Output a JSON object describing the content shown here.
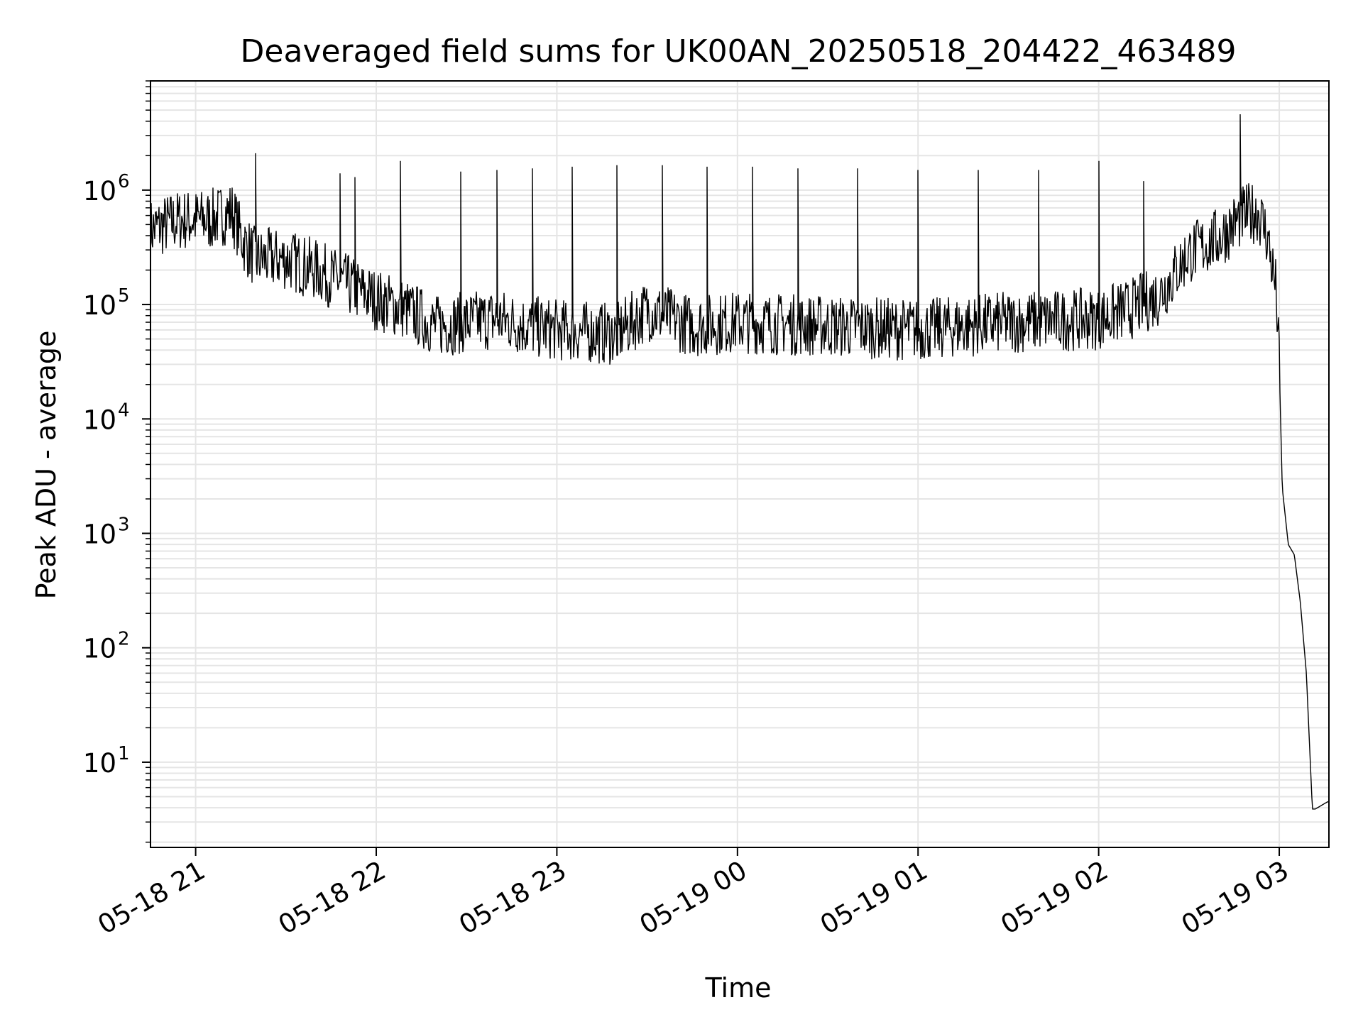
{
  "chart_data": {
    "type": "line",
    "title": "Deaveraged field sums for UK00AN_20250518_204422_463489",
    "xlabel": "Time",
    "ylabel": "Peak ADU - average",
    "x_axis": {
      "type": "time",
      "range": [
        "2025-05-18T20:45:00",
        "2025-05-19T03:16:30"
      ],
      "tick_labels": [
        "05-18 21",
        "05-18 22",
        "05-18 23",
        "05-19 00",
        "05-19 01",
        "05-19 02",
        "05-19 03"
      ],
      "tick_values": [
        "2025-05-18T21:00",
        "2025-05-18T22:00",
        "2025-05-18T23:00",
        "2025-05-19T00:00",
        "2025-05-19T01:00",
        "2025-05-19T02:00",
        "2025-05-19T03:00"
      ]
    },
    "y_axis": {
      "scale": "log",
      "range": [
        1.8,
        9000000
      ],
      "tick_values": [
        10,
        100,
        1000,
        10000,
        100000,
        1000000
      ],
      "tick_labels": [
        {
          "base": "10",
          "exp": "1"
        },
        {
          "base": "10",
          "exp": "2"
        },
        {
          "base": "10",
          "exp": "3"
        },
        {
          "base": "10",
          "exp": "4"
        },
        {
          "base": "10",
          "exp": "5"
        },
        {
          "base": "10",
          "exp": "6"
        }
      ]
    },
    "grid": true,
    "line_color": "#000000",
    "grid_color": "#e5e5e5",
    "series": [
      {
        "x": [
          "2025-05-18T20:45",
          "2025-05-18T20:55",
          "2025-05-18T21:05",
          "2025-05-18T21:12",
          "2025-05-18T21:16",
          "2025-05-18T21:20",
          "2025-05-18T21:30",
          "2025-05-18T21:40",
          "2025-05-18T21:50",
          "2025-05-18T22:00",
          "2025-05-18T22:10",
          "2025-05-18T22:20",
          "2025-05-18T22:30",
          "2025-05-18T22:40",
          "2025-05-18T22:50",
          "2025-05-18T23:00",
          "2025-05-18T23:20",
          "2025-05-18T23:30",
          "2025-05-18T23:45",
          "2025-05-19T00:00",
          "2025-05-19T00:30",
          "2025-05-19T01:00",
          "2025-05-19T01:30",
          "2025-05-19T02:00",
          "2025-05-19T02:10",
          "2025-05-19T02:20",
          "2025-05-19T02:30",
          "2025-05-19T02:40",
          "2025-05-19T02:48",
          "2025-05-19T02:53",
          "2025-05-19T02:56",
          "2025-05-19T02:59",
          "2025-05-19T03:00",
          "2025-05-19T03:01",
          "2025-05-19T03:03",
          "2025-05-19T03:05",
          "2025-05-19T03:07",
          "2025-05-19T03:09",
          "2025-05-19T03:11",
          "2025-05-19T03:12",
          "2025-05-19T03:16"
        ],
        "y": [
          450000,
          550000,
          550000,
          650000,
          350000,
          250000,
          250000,
          200000,
          150000,
          110000,
          90000,
          65000,
          70000,
          75000,
          65000,
          60000,
          55000,
          90000,
          65000,
          70000,
          65000,
          60000,
          70000,
          75000,
          90000,
          120000,
          280000,
          380000,
          600000,
          650000,
          400000,
          130000,
          30000,
          2500,
          800,
          650,
          250,
          60,
          3.9,
          3.9,
          4.5
        ],
        "spikes": [
          [
            "2025-05-18T21:20",
            2100000
          ],
          [
            "2025-05-18T21:48",
            1400000
          ],
          [
            "2025-05-18T21:53",
            1300000
          ],
          [
            "2025-05-18T22:08",
            1800000
          ],
          [
            "2025-05-18T22:28",
            1450000
          ],
          [
            "2025-05-18T22:40",
            1500000
          ],
          [
            "2025-05-18T22:52",
            1550000
          ],
          [
            "2025-05-18T23:05",
            1600000
          ],
          [
            "2025-05-18T23:20",
            1650000
          ],
          [
            "2025-05-18T23:35",
            1650000
          ],
          [
            "2025-05-18T23:50",
            1600000
          ],
          [
            "2025-05-19T00:05",
            1600000
          ],
          [
            "2025-05-19T00:20",
            1550000
          ],
          [
            "2025-05-19T00:40",
            1550000
          ],
          [
            "2025-05-19T01:00",
            1500000
          ],
          [
            "2025-05-19T01:20",
            1500000
          ],
          [
            "2025-05-19T01:40",
            1500000
          ],
          [
            "2025-05-19T02:00",
            1800000
          ],
          [
            "2025-05-19T02:15",
            1200000
          ],
          [
            "2025-05-19T02:47",
            4600000
          ]
        ]
      }
    ]
  }
}
